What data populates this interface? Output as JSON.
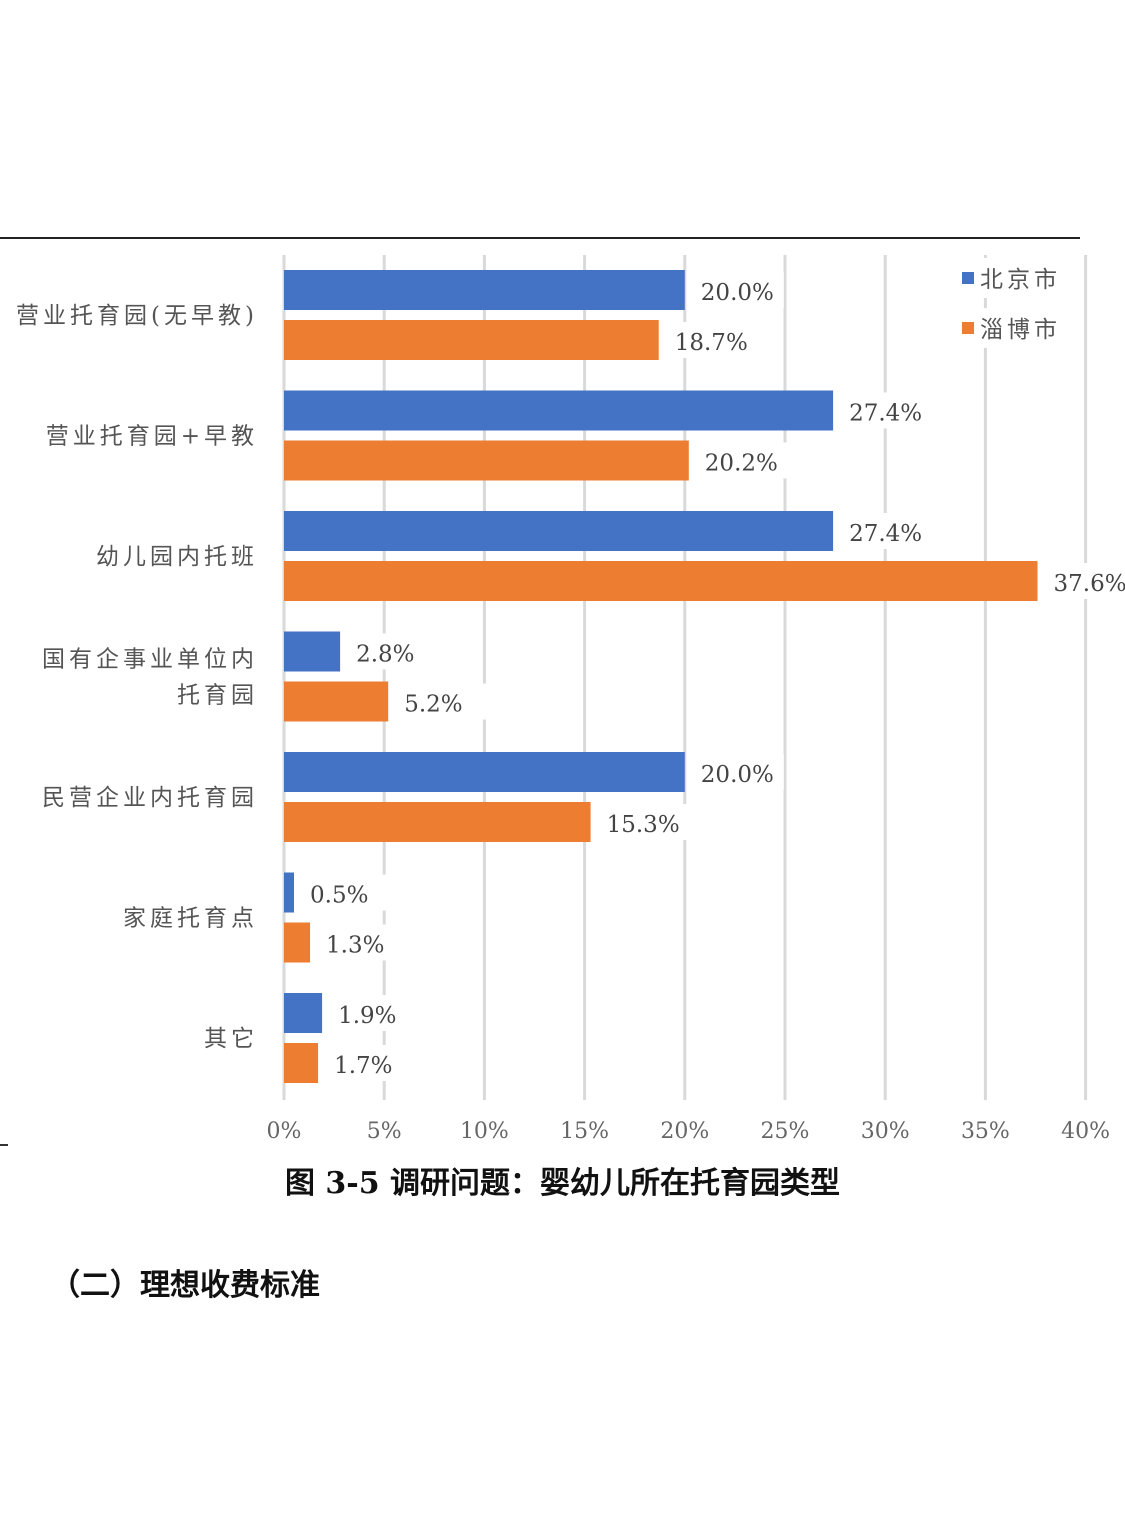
{
  "chart_data": {
    "type": "bar",
    "orientation": "horizontal",
    "categories": [
      "营业托育园(无早教)",
      "营业托育园+早教",
      "幼儿园内托班",
      "国有企事业单位内托育园",
      "民营企业内托育园",
      "家庭托育点",
      "其它"
    ],
    "category_lines": [
      [
        "营业托育园(无早教)"
      ],
      [
        "营业托育园+早教"
      ],
      [
        "幼儿园内托班"
      ],
      [
        "国有企事业单位内",
        "托育园"
      ],
      [
        "民营企业内托育园"
      ],
      [
        "家庭托育点"
      ],
      [
        "其它"
      ]
    ],
    "series": [
      {
        "name": "北京市",
        "color": "#4472C4",
        "values": [
          20.0,
          27.4,
          27.4,
          2.8,
          20.0,
          0.5,
          1.9
        ],
        "labels": [
          "20.0%",
          "27.4%",
          "27.4%",
          "2.8%",
          "20.0%",
          "0.5%",
          "1.9%"
        ]
      },
      {
        "name": "淄博市",
        "color": "#ED7D31",
        "values": [
          18.7,
          20.2,
          37.6,
          5.2,
          15.3,
          1.3,
          1.7
        ],
        "labels": [
          "18.7%",
          "20.2%",
          "37.6%",
          "5.2%",
          "15.3%",
          "1.3%",
          "1.7%"
        ]
      }
    ],
    "xlim": [
      0,
      40
    ],
    "xticks": [
      "0%",
      "5%",
      "10%",
      "15%",
      "20%",
      "25%",
      "30%",
      "35%",
      "40%"
    ],
    "grid": true,
    "legend": "top-right",
    "title": "图 3-5  调研问题：婴幼儿所在托育园类型"
  },
  "section_heading": "（二）理想收费标准"
}
